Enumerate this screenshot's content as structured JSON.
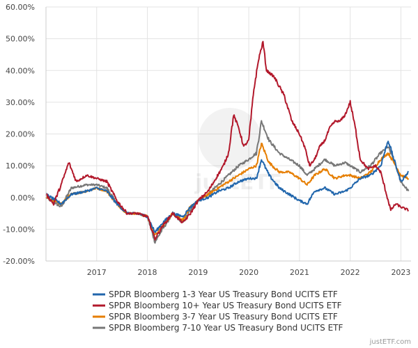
{
  "chart_data": {
    "type": "line",
    "title": "",
    "xlabel": "",
    "ylabel": "",
    "ylim": [
      -20,
      60
    ],
    "xlim": [
      2016.0,
      2023.2
    ],
    "grid": true,
    "legend_position": "bottom",
    "y_ticks": [
      {
        "value": -20,
        "label": "-20.00%"
      },
      {
        "value": -10,
        "label": "-10.00%"
      },
      {
        "value": 0,
        "label": "0.00%"
      },
      {
        "value": 10,
        "label": "10.00%"
      },
      {
        "value": 20,
        "label": "20.00%"
      },
      {
        "value": 30,
        "label": "30.00%"
      },
      {
        "value": 40,
        "label": "40.00%"
      },
      {
        "value": 50,
        "label": "50.00%"
      },
      {
        "value": 60,
        "label": "60.00%"
      }
    ],
    "x_ticks": [
      {
        "value": 2017,
        "label": "2017"
      },
      {
        "value": 2018,
        "label": "2018"
      },
      {
        "value": 2019,
        "label": "2019"
      },
      {
        "value": 2020,
        "label": "2020"
      },
      {
        "value": 2021,
        "label": "2021"
      },
      {
        "value": 2022,
        "label": "2022"
      },
      {
        "value": 2023,
        "label": "2023"
      }
    ],
    "series": [
      {
        "name": "SPDR Bloomberg 1-3 Year US Treasury Bond UCITS ETF",
        "color": "#2166ac",
        "x": [
          2016.0,
          2016.3,
          2016.5,
          2016.8,
          2017.0,
          2017.2,
          2017.4,
          2017.6,
          2017.8,
          2018.0,
          2018.15,
          2018.3,
          2018.5,
          2018.7,
          2018.85,
          2019.0,
          2019.2,
          2019.4,
          2019.6,
          2019.8,
          2020.0,
          2020.15,
          2020.25,
          2020.4,
          2020.6,
          2020.8,
          2021.0,
          2021.15,
          2021.3,
          2021.5,
          2021.7,
          2021.9,
          2022.0,
          2022.2,
          2022.4,
          2022.6,
          2022.75,
          2022.9,
          2023.0,
          2023.15
        ],
        "values": [
          1,
          -2,
          1,
          2,
          3,
          2,
          -2,
          -5,
          -5,
          -6,
          -11,
          -8,
          -5,
          -6,
          -3,
          -1,
          0,
          2,
          3,
          5,
          6,
          6,
          12,
          7,
          3,
          1,
          -1,
          -2,
          2,
          3,
          1,
          2,
          3,
          6,
          7,
          10,
          18,
          10,
          5,
          8
        ]
      },
      {
        "name": "SPDR Bloomberg 10+ Year US Treasury Bond UCITS ETF",
        "color": "#b2182b",
        "x": [
          2016.0,
          2016.15,
          2016.3,
          2016.45,
          2016.6,
          2016.8,
          2017.0,
          2017.2,
          2017.4,
          2017.6,
          2017.8,
          2018.0,
          2018.15,
          2018.3,
          2018.5,
          2018.7,
          2018.85,
          2019.0,
          2019.2,
          2019.35,
          2019.5,
          2019.6,
          2019.7,
          2019.8,
          2019.9,
          2020.0,
          2020.1,
          2020.2,
          2020.28,
          2020.35,
          2020.5,
          2020.7,
          2020.85,
          2021.0,
          2021.1,
          2021.2,
          2021.3,
          2021.4,
          2021.5,
          2021.6,
          2021.7,
          2021.8,
          2021.9,
          2022.0,
          2022.1,
          2022.2,
          2022.35,
          2022.5,
          2022.6,
          2022.7,
          2022.8,
          2022.9,
          2023.0,
          2023.15
        ],
        "values": [
          1,
          -2,
          4,
          11,
          5,
          7,
          6,
          5,
          -1,
          -5,
          -5,
          -6,
          -13,
          -9,
          -5,
          -8,
          -5,
          -1,
          2,
          6,
          10,
          14,
          26,
          22,
          16,
          18,
          34,
          44,
          49,
          40,
          38,
          32,
          24,
          20,
          16,
          10,
          12,
          16,
          18,
          22,
          24,
          24,
          26,
          30,
          22,
          12,
          9,
          10,
          8,
          2,
          -4,
          -2,
          -3,
          -4
        ]
      },
      {
        "name": "SPDR Bloomberg 3-7 Year US Treasury Bond UCITS ETF",
        "color": "#e67e00",
        "x": [
          2016.0,
          2016.3,
          2016.5,
          2016.8,
          2017.0,
          2017.2,
          2017.4,
          2017.6,
          2017.8,
          2018.0,
          2018.15,
          2018.3,
          2018.5,
          2018.7,
          2018.85,
          2019.0,
          2019.2,
          2019.4,
          2019.6,
          2019.8,
          2020.0,
          2020.15,
          2020.25,
          2020.4,
          2020.6,
          2020.8,
          2021.0,
          2021.15,
          2021.3,
          2021.5,
          2021.7,
          2021.9,
          2022.0,
          2022.2,
          2022.4,
          2022.6,
          2022.75,
          2022.9,
          2023.0,
          2023.15
        ],
        "values": [
          0,
          -2,
          1,
          2,
          3,
          2,
          -2,
          -5,
          -5,
          -6,
          -12,
          -9,
          -5,
          -7,
          -3,
          -1,
          1,
          3,
          5,
          7,
          9,
          10,
          17,
          11,
          8,
          8,
          6,
          4,
          7,
          9,
          6,
          7,
          7,
          6,
          8,
          12,
          14,
          10,
          7,
          6
        ]
      },
      {
        "name": "SPDR Bloomberg 7-10 Year US Treasury Bond UCITS ETF",
        "color": "#777777",
        "x": [
          2016.0,
          2016.3,
          2016.5,
          2016.8,
          2017.0,
          2017.2,
          2017.4,
          2017.6,
          2017.8,
          2018.0,
          2018.15,
          2018.3,
          2018.5,
          2018.7,
          2018.85,
          2019.0,
          2019.2,
          2019.4,
          2019.6,
          2019.8,
          2020.0,
          2020.15,
          2020.25,
          2020.4,
          2020.6,
          2020.8,
          2021.0,
          2021.15,
          2021.3,
          2021.5,
          2021.7,
          2021.9,
          2022.0,
          2022.2,
          2022.4,
          2022.6,
          2022.75,
          2022.9,
          2023.0,
          2023.15
        ],
        "values": [
          0,
          -3,
          3,
          4,
          4,
          3,
          -2,
          -5,
          -5,
          -6,
          -14,
          -10,
          -5,
          -8,
          -4,
          -1,
          1,
          4,
          7,
          10,
          12,
          14,
          24,
          18,
          14,
          12,
          10,
          7,
          9,
          12,
          10,
          11,
          10,
          8,
          10,
          14,
          16,
          10,
          5,
          2
        ]
      }
    ]
  },
  "watermark": "justETF",
  "credit": "justETF.com"
}
